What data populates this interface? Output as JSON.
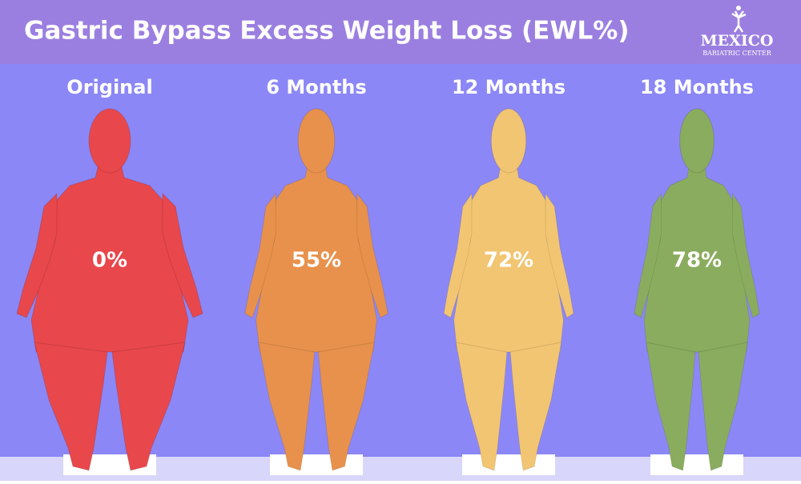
{
  "chart_data": {
    "type": "pictograph",
    "title": "Gastric Bypass Excess Weight Loss (EWL%)",
    "categories": [
      "Original",
      "6 Months",
      "12 Months",
      "18 Months"
    ],
    "values": [
      0,
      55,
      72,
      78
    ],
    "value_labels": [
      "0%",
      "55%",
      "72%",
      "78%"
    ],
    "colors": [
      "#e8474c",
      "#e8914c",
      "#f2c572",
      "#8aac5e"
    ]
  },
  "logo": {
    "name": "MEXICO",
    "tagline": "BARIATRIC CENTER"
  }
}
